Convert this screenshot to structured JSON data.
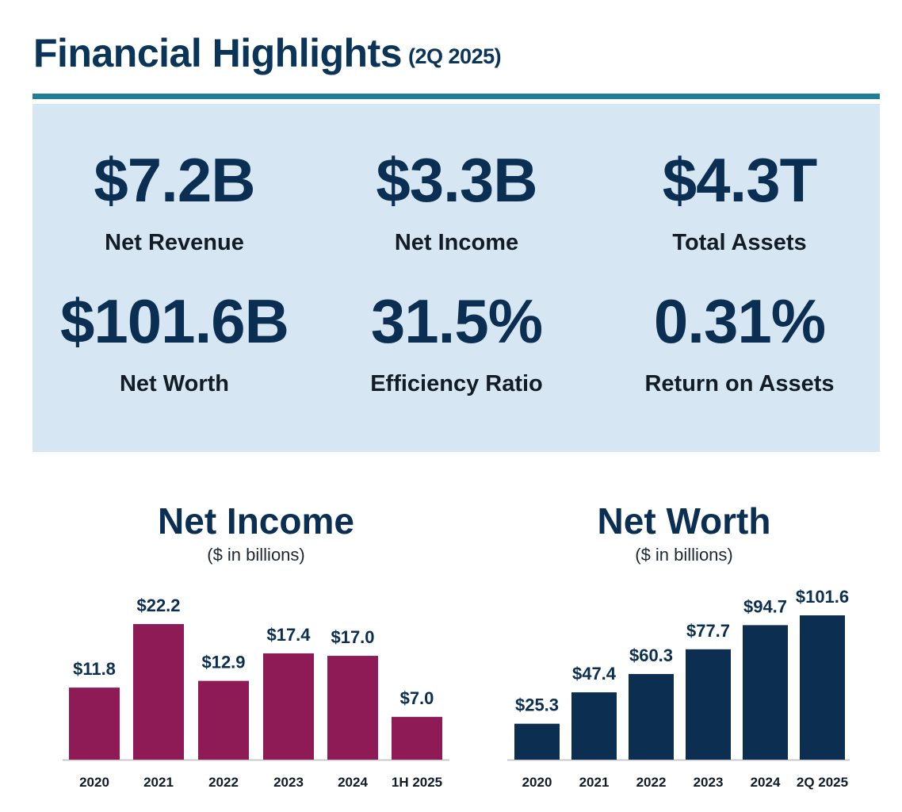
{
  "header": {
    "title": "Financial Highlights",
    "period": "(2Q 2025)"
  },
  "kpis": [
    {
      "value": "$7.2B",
      "label": "Net Revenue"
    },
    {
      "value": "$3.3B",
      "label": "Net Income"
    },
    {
      "value": "$4.3T",
      "label": "Total Assets"
    },
    {
      "value": "$101.6B",
      "label": "Net Worth"
    },
    {
      "value": "31.5%",
      "label": "Efficiency Ratio"
    },
    {
      "value": "0.31%",
      "label": "Return on Assets"
    }
  ],
  "colors": {
    "net_income_bar": "#8e1b56",
    "net_worth_bar": "#0c2f51",
    "rule": "#1f7f98",
    "panel": "#d6e7f3"
  },
  "chart_data": [
    {
      "type": "bar",
      "title": "Net Income",
      "subtitle": "($ in billions)",
      "categories": [
        "2020",
        "2021",
        "2022",
        "2023",
        "2024",
        "1H 2025"
      ],
      "values": [
        11.8,
        22.2,
        12.9,
        17.4,
        17.0,
        7.0
      ],
      "data_labels": [
        "$11.8",
        "$22.2",
        "$12.9",
        "$17.4",
        "$17.0",
        "$7.0"
      ],
      "ylim": [
        0,
        22.2
      ],
      "color": "#8e1b56"
    },
    {
      "type": "bar",
      "title": "Net Worth",
      "subtitle": "($ in billions)",
      "categories": [
        "2020",
        "2021",
        "2022",
        "2023",
        "2024",
        "2Q 2025"
      ],
      "values": [
        25.3,
        47.4,
        60.3,
        77.7,
        94.7,
        101.6
      ],
      "data_labels": [
        "$25.3",
        "$47.4",
        "$60.3",
        "$77.7",
        "$94.7",
        "$101.6"
      ],
      "ylim": [
        0,
        101.6
      ],
      "color": "#0c2f51"
    }
  ]
}
